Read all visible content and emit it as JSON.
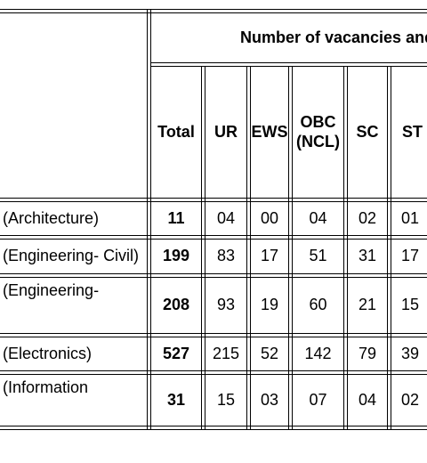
{
  "table": {
    "group_header": "Number of vacancies and",
    "columns": {
      "total": "Total",
      "ur": "UR",
      "ews": "EWS",
      "obc_line1": "OBC",
      "obc_line2": "(NCL)",
      "sc": "SC",
      "st": "ST"
    },
    "rows": [
      {
        "name": "(Architecture)",
        "total": "11",
        "ur": "04",
        "ews": "00",
        "obc": "04",
        "sc": "02",
        "st": "01"
      },
      {
        "name": "(Engineering- Civil)",
        "total": "199",
        "ur": "83",
        "ews": "17",
        "obc": "51",
        "sc": "31",
        "st": "17"
      },
      {
        "name": "(Engineering-",
        "total": "208",
        "ur": "93",
        "ews": "19",
        "obc": "60",
        "sc": "21",
        "st": "15"
      },
      {
        "name": "(Electronics)",
        "total": "527",
        "ur": "215",
        "ews": "52",
        "obc": "142",
        "sc": "79",
        "st": "39"
      },
      {
        "name": "(Information",
        "total": "31",
        "ur": "15",
        "ews": "03",
        "obc": "07",
        "sc": "04",
        "st": "02"
      }
    ]
  }
}
